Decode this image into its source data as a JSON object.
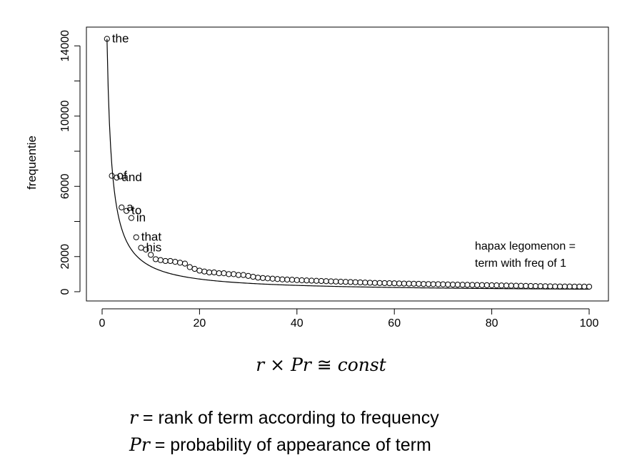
{
  "chart_data": {
    "type": "scatter",
    "ylabel": "frequentie",
    "xlabel": "",
    "xlim": [
      0,
      100
    ],
    "ylim": [
      0,
      14500
    ],
    "xticks": [
      0,
      20,
      40,
      60,
      80,
      100
    ],
    "yticks": [
      0,
      2000,
      6000,
      10000,
      14000
    ],
    "grid": false,
    "point_labels": [
      {
        "rank": 1,
        "word": "the"
      },
      {
        "rank": 2,
        "word": "of"
      },
      {
        "rank": 3,
        "word": "and"
      },
      {
        "rank": 4,
        "word": "a"
      },
      {
        "rank": 5,
        "word": "to"
      },
      {
        "rank": 6,
        "word": "in"
      },
      {
        "rank": 7,
        "word": "that"
      },
      {
        "rank": 8,
        "word": "his"
      }
    ],
    "series": [
      {
        "kind": "points",
        "x": [
          1,
          2,
          3,
          4,
          5,
          6,
          7,
          8,
          9,
          10,
          11,
          12,
          13,
          14,
          15,
          16,
          17,
          18,
          19,
          20,
          21,
          22,
          23,
          24,
          25,
          26,
          27,
          28,
          29,
          30,
          31,
          32,
          33,
          34,
          35,
          36,
          37,
          38,
          39,
          40,
          41,
          42,
          43,
          44,
          45,
          46,
          47,
          48,
          49,
          50,
          51,
          52,
          53,
          54,
          55,
          56,
          57,
          58,
          59,
          60,
          61,
          62,
          63,
          64,
          65,
          66,
          67,
          68,
          69,
          70,
          71,
          72,
          73,
          74,
          75,
          76,
          77,
          78,
          79,
          80,
          81,
          82,
          83,
          84,
          85,
          86,
          87,
          88,
          89,
          90,
          91,
          92,
          93,
          94,
          95,
          96,
          97,
          98,
          99,
          100
        ],
        "y": [
          14400,
          6600,
          6500,
          4800,
          4600,
          4200,
          3100,
          2500,
          2400,
          2100,
          1850,
          1800,
          1750,
          1750,
          1700,
          1650,
          1600,
          1400,
          1300,
          1200,
          1150,
          1100,
          1100,
          1050,
          1050,
          1000,
          1000,
          950,
          950,
          900,
          850,
          800,
          780,
          760,
          740,
          720,
          700,
          690,
          680,
          660,
          650,
          640,
          630,
          620,
          610,
          600,
          590,
          580,
          570,
          560,
          550,
          540,
          530,
          520,
          510,
          500,
          495,
          490,
          485,
          480,
          470,
          465,
          460,
          455,
          450,
          440,
          435,
          430,
          425,
          420,
          410,
          405,
          400,
          395,
          390,
          385,
          380,
          375,
          370,
          365,
          360,
          355,
          350,
          345,
          340,
          335,
          330,
          325,
          320,
          315,
          310,
          305,
          300,
          298,
          296,
          294,
          292,
          290,
          288,
          286
        ]
      },
      {
        "kind": "curve",
        "formula": "14400 / rank",
        "x_from": 1,
        "x_to": 100
      }
    ],
    "annotations": [
      "hapax legomenon =",
      "term with freq of 1"
    ]
  },
  "formula": {
    "r": "r",
    "times": "×",
    "pr": "Pr",
    "approx": "≅",
    "const": "const"
  },
  "legend": [
    {
      "symbol": "r",
      "text": " = rank of term according to frequency"
    },
    {
      "symbol": "Pr",
      "text": " = probability of appearance of term"
    }
  ]
}
